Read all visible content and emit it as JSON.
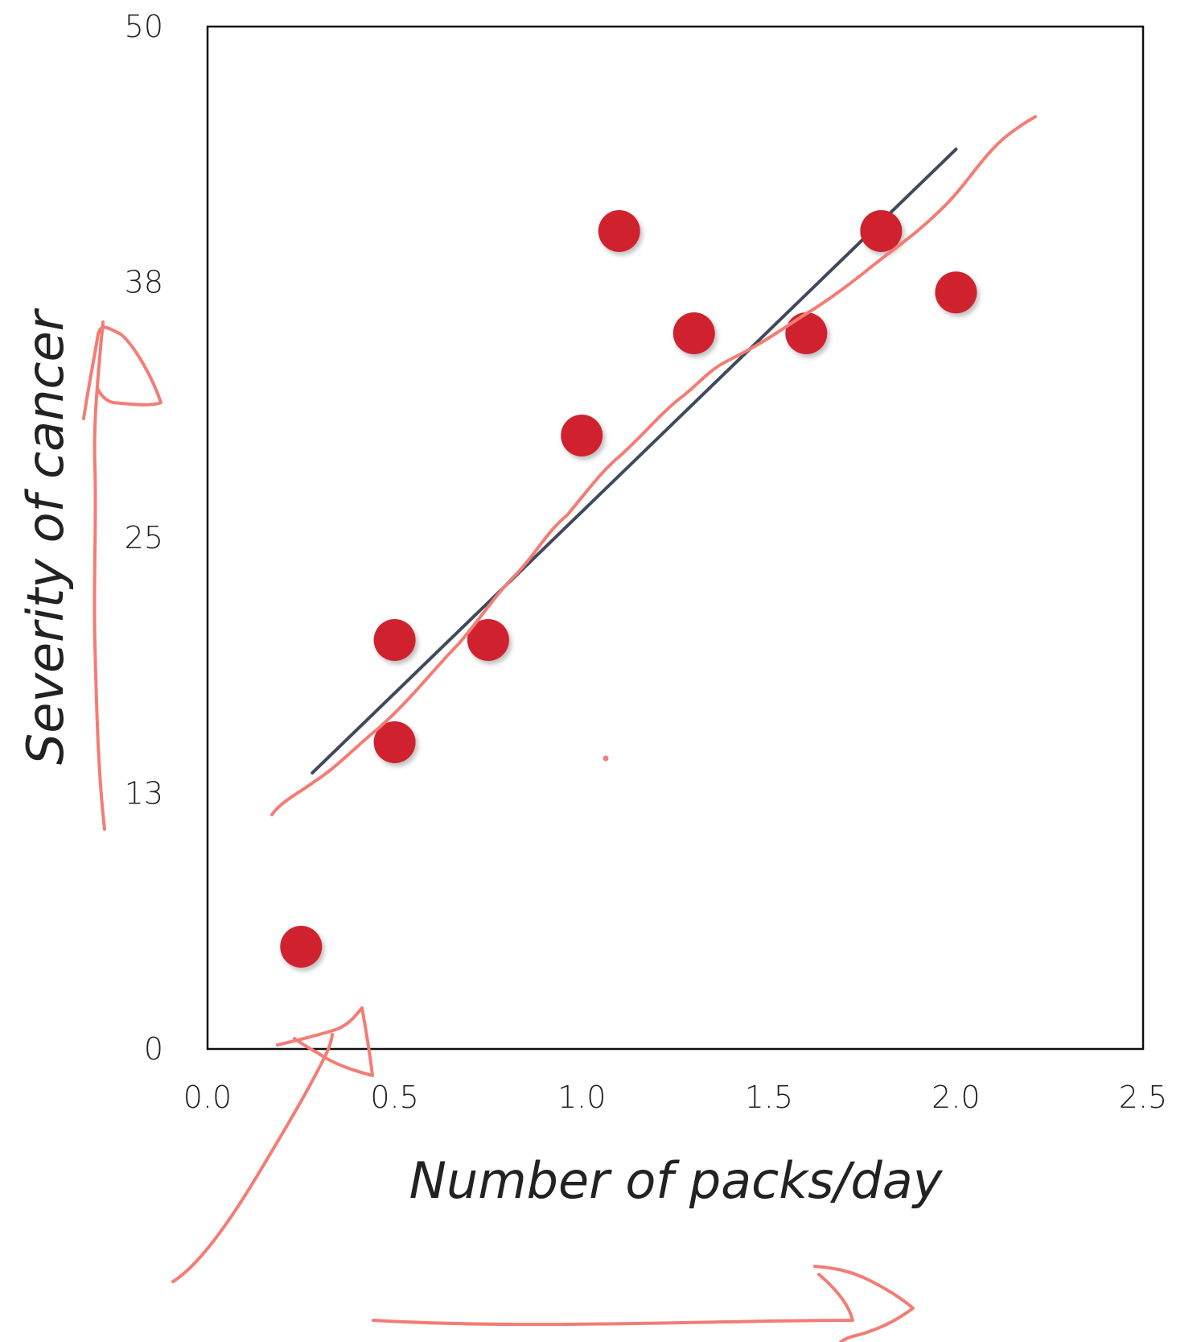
{
  "chart_data": {
    "type": "scatter",
    "title": "",
    "xlabel": "Number of packs/day",
    "ylabel": "Severity of cancer",
    "xlim": [
      0,
      2.5
    ],
    "ylim": [
      0,
      50
    ],
    "x_ticks": [
      "0.0",
      "0.5",
      "1.0",
      "1.5",
      "2.0",
      "2.5"
    ],
    "y_ticks": [
      "0",
      "13",
      "25",
      "38",
      "50"
    ],
    "x_tick_values": [
      0,
      0.5,
      1.0,
      1.5,
      2.0,
      2.5
    ],
    "y_tick_values": [
      0,
      12.5,
      25,
      37.5,
      50
    ],
    "grid": false,
    "legend": "none",
    "series": [
      {
        "points": [
          {
            "x": 0.25,
            "y": 5
          },
          {
            "x": 0.5,
            "y": 15
          },
          {
            "x": 0.5,
            "y": 20
          },
          {
            "x": 0.75,
            "y": 20
          },
          {
            "x": 1.0,
            "y": 30
          },
          {
            "x": 1.1,
            "y": 40
          },
          {
            "x": 1.3,
            "y": 35
          },
          {
            "x": 1.6,
            "y": 35
          },
          {
            "x": 1.8,
            "y": 40
          },
          {
            "x": 2.0,
            "y": 37
          }
        ]
      }
    ],
    "trendline": {
      "x": [
        0.28,
        2.0
      ],
      "y": [
        13.5,
        44
      ]
    },
    "colors": {
      "point": "#d0212d",
      "trendline": "#3f4a5c",
      "annotation": "#f47c74",
      "axis": "#111111"
    }
  }
}
